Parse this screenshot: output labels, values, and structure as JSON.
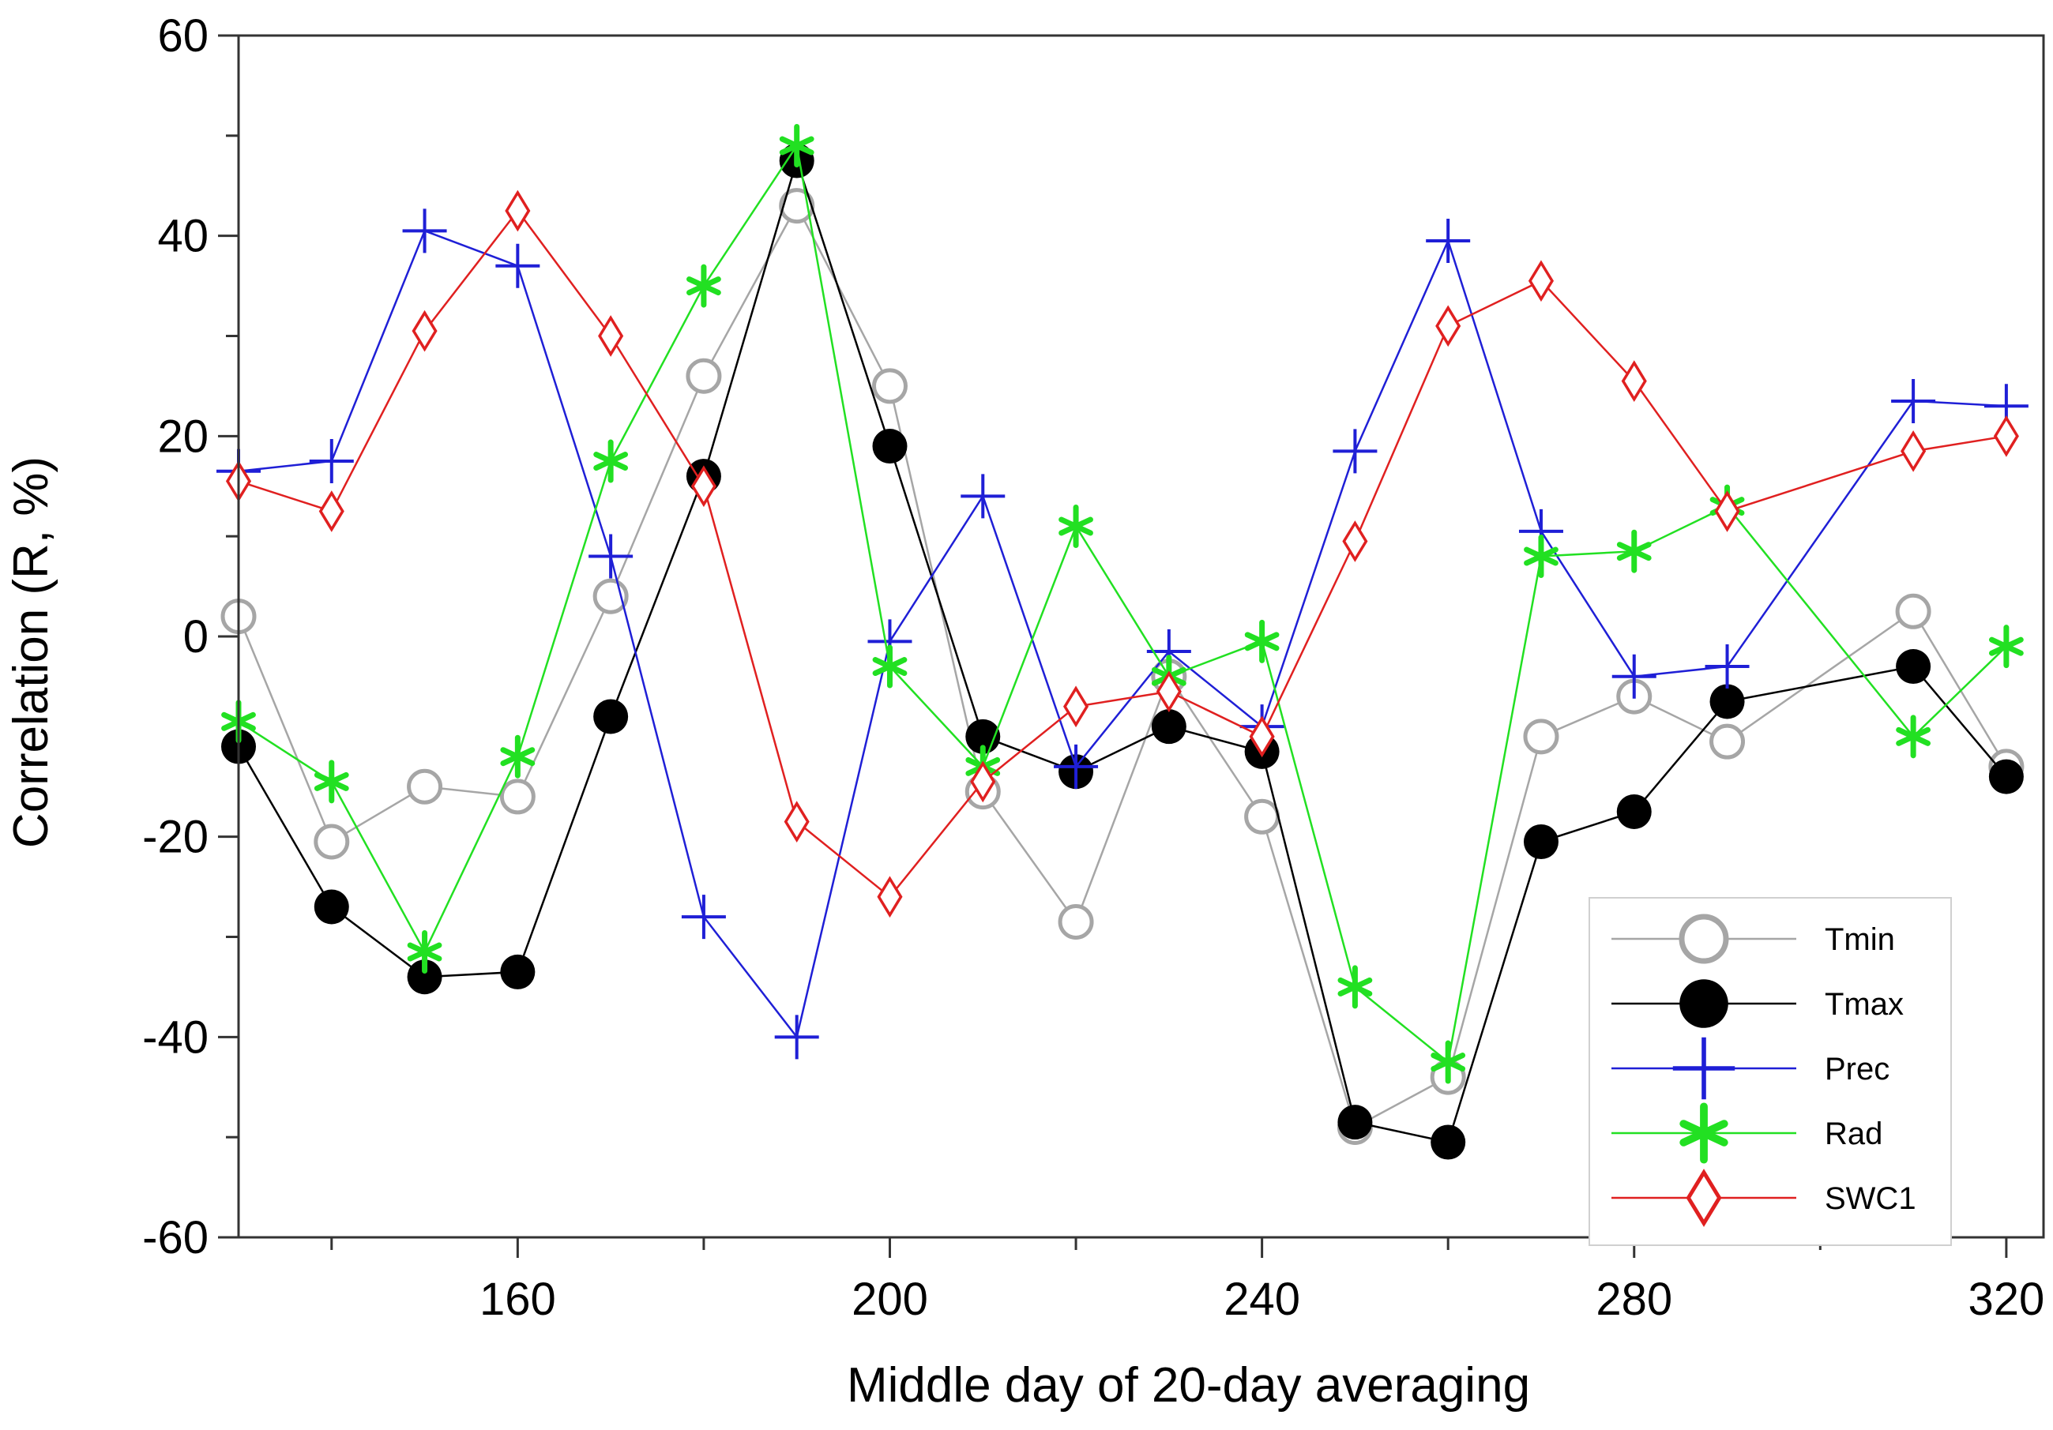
{
  "chart_data": {
    "type": "line",
    "title": "",
    "xlabel": "Middle day of 20-day averaging",
    "ylabel": "Correlation (R, %)",
    "xlim": [
      130,
      324
    ],
    "ylim": [
      -60,
      60
    ],
    "xticks": [
      160,
      200,
      240,
      280,
      320
    ],
    "xticks_minor": [
      140,
      180,
      220,
      260,
      300
    ],
    "yticks": [
      -60,
      -40,
      -20,
      0,
      20,
      40,
      60
    ],
    "yticks_minor": [
      -50,
      -30,
      -10,
      10,
      30,
      50
    ],
    "legend_position": "bottom-right",
    "x": [
      130,
      140,
      150,
      160,
      170,
      180,
      190,
      200,
      210,
      220,
      230,
      240,
      250,
      260,
      270,
      280,
      290,
      310,
      320
    ],
    "series": [
      {
        "name": "Tmin",
        "color": "#a6a6a6",
        "marker": "open-circle",
        "values": [
          2,
          -20.5,
          -15,
          -16,
          4,
          26,
          43,
          25,
          -15.5,
          -28.5,
          -4,
          -18,
          -49,
          -44,
          -10,
          -6,
          -10.5,
          2.5,
          -13
        ]
      },
      {
        "name": "Tmax",
        "color": "#000000",
        "marker": "filled-circle",
        "values": [
          -11,
          -27,
          -34,
          -33.5,
          -8,
          16,
          47.5,
          19,
          -10,
          -13.5,
          -9,
          -11.5,
          -48.5,
          -50.5,
          -20.5,
          -17.5,
          -6.5,
          -3,
          -14
        ]
      },
      {
        "name": "Prec",
        "color": "#1f1fd6",
        "marker": "plus",
        "values": [
          16.5,
          17.5,
          40.5,
          37,
          8,
          -28,
          -40,
          -0.5,
          14,
          -13,
          -1.5,
          -9,
          18.5,
          39.5,
          10.5,
          -4,
          -3,
          23.5,
          23
        ]
      },
      {
        "name": "Rad",
        "color": "#22e022",
        "marker": "asterisk",
        "values": [
          -8.5,
          -14.5,
          -31.5,
          -12,
          17.5,
          35,
          49,
          -3,
          -13,
          11,
          -4,
          -0.5,
          -35,
          -42.5,
          8,
          8.5,
          13,
          -10,
          -1
        ]
      },
      {
        "name": "SWC1",
        "color": "#e02020",
        "marker": "open-diamond",
        "values": [
          15.5,
          12.5,
          30.5,
          42.5,
          30,
          15,
          -18.5,
          -26,
          -14.5,
          -7,
          -5.5,
          -10,
          9.5,
          31,
          35.5,
          25.5,
          12.5,
          18.5,
          20
        ]
      }
    ]
  }
}
